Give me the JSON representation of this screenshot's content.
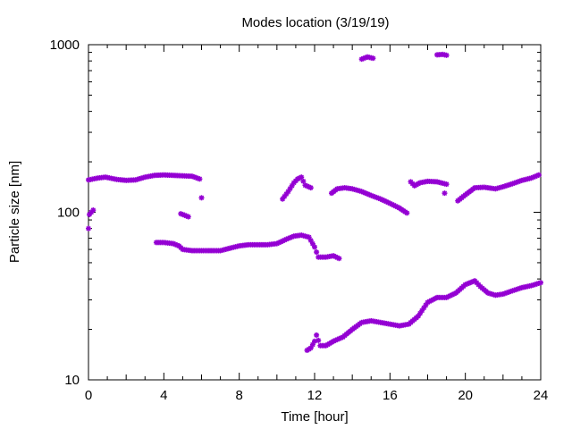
{
  "chart_data": {
    "type": "scatter",
    "title": "Modes location (3/19/19)",
    "xlabel": "Time [hour]",
    "ylabel": "Particle size [nm]",
    "xlim": [
      0,
      24
    ],
    "ylim": [
      10,
      1000
    ],
    "yscale": "log",
    "grid": false,
    "legend": "none",
    "marker_color": "#9400d3",
    "x_ticks": [
      0,
      4,
      8,
      12,
      16,
      20,
      24
    ],
    "x_tick_labels": [
      "0",
      "4",
      "8",
      "12",
      "16",
      "20",
      "24"
    ],
    "y_ticks": [
      10,
      100,
      1000
    ],
    "y_tick_labels": [
      "10",
      "100",
      "1000"
    ],
    "series": [
      {
        "points": [
          [
            0,
            156
          ],
          [
            0.5,
            160
          ],
          [
            0.9,
            162
          ],
          [
            1.5,
            157
          ],
          [
            2,
            155
          ],
          [
            2.5,
            156
          ],
          [
            3,
            162
          ],
          [
            3.5,
            166
          ],
          [
            4,
            167
          ],
          [
            4.5,
            166
          ],
          [
            5,
            165
          ],
          [
            5.5,
            164
          ],
          [
            5.9,
            158
          ],
          [
            0,
            80
          ],
          [
            0.05,
            97
          ],
          [
            0.15,
            100
          ],
          [
            0.25,
            103
          ],
          [
            4.9,
            98
          ],
          [
            5.1,
            96
          ],
          [
            5.3,
            94
          ],
          [
            6.0,
            122
          ],
          [
            10.3,
            120
          ],
          [
            10.6,
            133
          ],
          [
            10.9,
            150
          ],
          [
            11.1,
            158
          ],
          [
            11.3,
            162
          ],
          [
            11.5,
            145
          ],
          [
            11.8,
            140
          ],
          [
            12.9,
            130
          ],
          [
            13.2,
            138
          ],
          [
            13.6,
            140
          ],
          [
            14,
            138
          ],
          [
            14.5,
            133
          ],
          [
            15,
            126
          ],
          [
            15.5,
            120
          ],
          [
            16,
            113
          ],
          [
            16.5,
            106
          ],
          [
            16.9,
            99
          ],
          [
            17.1,
            152
          ],
          [
            17.3,
            144
          ],
          [
            17.6,
            150
          ],
          [
            18,
            153
          ],
          [
            18.5,
            152
          ],
          [
            19,
            147
          ],
          [
            18.9,
            130
          ],
          [
            19.6,
            117
          ],
          [
            20,
            127
          ],
          [
            20.5,
            140
          ],
          [
            21,
            141
          ],
          [
            21.6,
            138
          ],
          [
            22,
            142
          ],
          [
            22.5,
            148
          ],
          [
            23,
            155
          ],
          [
            23.5,
            160
          ],
          [
            23.9,
            167
          ],
          [
            14.5,
            820
          ],
          [
            14.8,
            845
          ],
          [
            15.1,
            830
          ],
          [
            18.5,
            870
          ],
          [
            18.8,
            875
          ],
          [
            19.0,
            865
          ],
          [
            3.6,
            66
          ],
          [
            4,
            66
          ],
          [
            4.5,
            65
          ],
          [
            4.8,
            63
          ],
          [
            5,
            60
          ],
          [
            5.5,
            59
          ],
          [
            6,
            59
          ],
          [
            6.5,
            59
          ],
          [
            7,
            59
          ],
          [
            7.5,
            61
          ],
          [
            8,
            63
          ],
          [
            8.5,
            64
          ],
          [
            9,
            64
          ],
          [
            9.5,
            64
          ],
          [
            10,
            65
          ],
          [
            10.5,
            69
          ],
          [
            10.9,
            72
          ],
          [
            11.3,
            73
          ],
          [
            11.7,
            71
          ],
          [
            12,
            62
          ],
          [
            12.2,
            54
          ],
          [
            12.6,
            54
          ],
          [
            13,
            55
          ],
          [
            13.3,
            53
          ],
          [
            11.6,
            15
          ],
          [
            11.8,
            15.5
          ],
          [
            12,
            17
          ],
          [
            12.1,
            18.5
          ],
          [
            12.3,
            16
          ],
          [
            12.6,
            16
          ],
          [
            13,
            17
          ],
          [
            13.5,
            18
          ],
          [
            14,
            20
          ],
          [
            14.5,
            22
          ],
          [
            15,
            22.5
          ],
          [
            15.5,
            22
          ],
          [
            16,
            21.5
          ],
          [
            16.5,
            21
          ],
          [
            17,
            21.5
          ],
          [
            17.5,
            24
          ],
          [
            18,
            29
          ],
          [
            18.5,
            31
          ],
          [
            19,
            31
          ],
          [
            19.5,
            33
          ],
          [
            20,
            37
          ],
          [
            20.5,
            39
          ],
          [
            20.8,
            36
          ],
          [
            21.2,
            33
          ],
          [
            21.6,
            32
          ],
          [
            22,
            32.5
          ],
          [
            22.5,
            34
          ],
          [
            23,
            35.5
          ],
          [
            23.5,
            36.5
          ],
          [
            24,
            38
          ]
        ]
      }
    ]
  }
}
